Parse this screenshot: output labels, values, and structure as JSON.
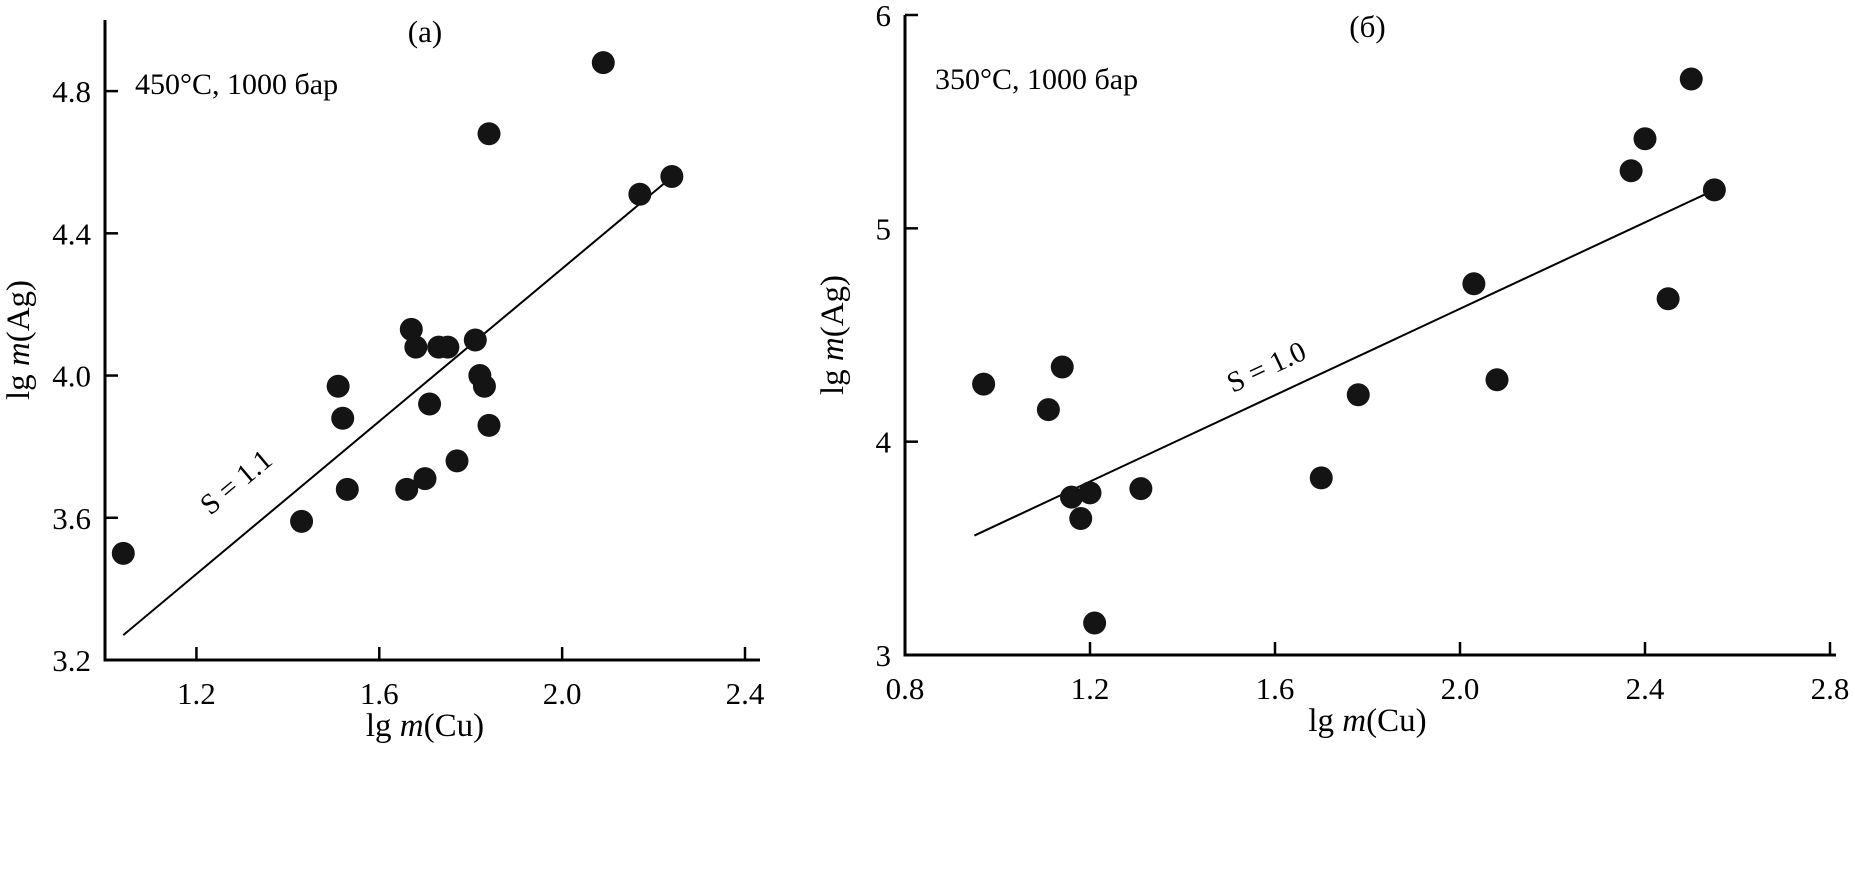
{
  "figure": {
    "background": "#ffffff",
    "ink_color": "#000000",
    "point_color": "#141414"
  },
  "chart_data": [
    {
      "type": "scatter",
      "panel_label": "(а)",
      "annotation": "450°C, 1000 бар",
      "xlabel_parts": [
        "lg ",
        "m",
        "(Cu)"
      ],
      "ylabel_parts": [
        "lg ",
        "m",
        "(Ag)"
      ],
      "xlim": [
        1.0,
        2.4
      ],
      "ylim": [
        3.2,
        5.0
      ],
      "xticks": [
        1.2,
        1.6,
        2.0,
        2.4
      ],
      "xtick_labels": [
        "1.2",
        "1.6",
        "2.0",
        "2.4"
      ],
      "yticks": [
        3.2,
        3.6,
        4.0,
        4.4,
        4.8
      ],
      "ytick_labels": [
        "3.2",
        "3.6",
        "4.0",
        "4.4",
        "4.8"
      ],
      "grid": false,
      "points": [
        [
          1.04,
          3.5
        ],
        [
          1.43,
          3.59
        ],
        [
          1.51,
          3.97
        ],
        [
          1.52,
          3.88
        ],
        [
          1.53,
          3.68
        ],
        [
          1.66,
          3.68
        ],
        [
          1.67,
          4.13
        ],
        [
          1.68,
          4.08
        ],
        [
          1.7,
          3.71
        ],
        [
          1.71,
          3.92
        ],
        [
          1.73,
          4.08
        ],
        [
          1.75,
          4.08
        ],
        [
          1.77,
          3.76
        ],
        [
          1.81,
          4.1
        ],
        [
          1.82,
          4.0
        ],
        [
          1.83,
          3.97
        ],
        [
          1.84,
          3.86
        ],
        [
          1.84,
          4.68
        ],
        [
          2.09,
          4.88
        ],
        [
          2.17,
          4.51
        ],
        [
          2.24,
          4.56
        ]
      ],
      "fit_line": {
        "x1": 1.04,
        "y1": 3.27,
        "x2": 2.26,
        "y2": 4.58,
        "slope_label": "S = 1.1",
        "label_anchor": [
          1.3,
          3.68
        ]
      }
    },
    {
      "type": "scatter",
      "panel_label": "(б)",
      "annotation": "350°C, 1000 бар",
      "xlabel_parts": [
        "lg ",
        "m",
        "(Cu)"
      ],
      "ylabel_parts": [
        "lg ",
        "m",
        "(Ag)"
      ],
      "xlim": [
        0.8,
        2.8
      ],
      "ylim": [
        3,
        6
      ],
      "xticks": [
        0.8,
        1.2,
        1.6,
        2.0,
        2.4,
        2.8
      ],
      "xtick_labels": [
        "0.8",
        "1.2",
        "1.6",
        "2.0",
        "2.4",
        "2.8"
      ],
      "yticks": [
        3,
        4,
        5,
        6
      ],
      "ytick_labels": [
        "3",
        "4",
        "5",
        "6"
      ],
      "grid": false,
      "points": [
        [
          0.97,
          4.27
        ],
        [
          1.11,
          4.15
        ],
        [
          1.14,
          4.35
        ],
        [
          1.16,
          3.74
        ],
        [
          1.2,
          3.76
        ],
        [
          1.18,
          3.64
        ],
        [
          1.21,
          3.15
        ],
        [
          1.31,
          3.78
        ],
        [
          1.7,
          3.83
        ],
        [
          1.78,
          4.22
        ],
        [
          2.03,
          4.74
        ],
        [
          2.08,
          4.29
        ],
        [
          2.37,
          5.27
        ],
        [
          2.4,
          5.42
        ],
        [
          2.45,
          4.67
        ],
        [
          2.5,
          5.7
        ],
        [
          2.55,
          5.18
        ]
      ],
      "fit_line": {
        "x1": 0.95,
        "y1": 3.56,
        "x2": 2.57,
        "y2": 5.2,
        "slope_label": "S = 1.0",
        "label_anchor": [
          1.59,
          4.31
        ]
      }
    }
  ]
}
